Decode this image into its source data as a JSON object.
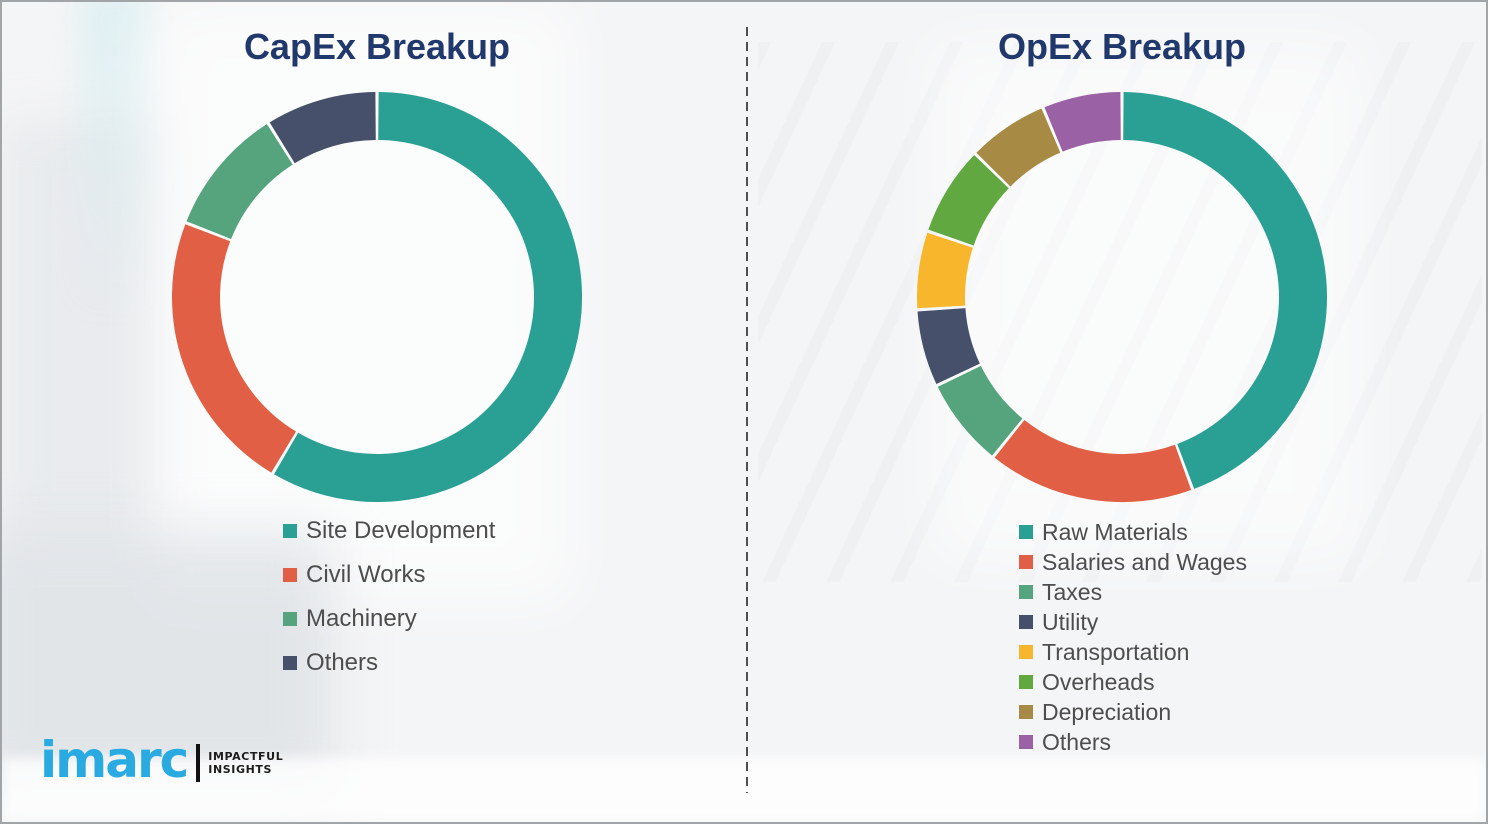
{
  "chart_data": [
    {
      "type": "pie",
      "subtype": "donut",
      "title": "CapEx Breakup",
      "legend_position": "below-left",
      "data_labels_shown": false,
      "segments": [
        {
          "label": "Site Development",
          "value_pct": 58.5,
          "color": "#2AA095"
        },
        {
          "label": "Civil Works",
          "value_pct": 22.4,
          "color": "#E15F44"
        },
        {
          "label": "Machinery",
          "value_pct": 10.2,
          "color": "#55A47D"
        },
        {
          "label": "Others",
          "value_pct": 8.9,
          "color": "#47506A"
        }
      ]
    },
    {
      "type": "pie",
      "subtype": "donut",
      "title": "OpEx Breakup",
      "legend_position": "below-left",
      "data_labels_shown": false,
      "segments": [
        {
          "label": "Raw Materials",
          "value_pct": 44.4,
          "color": "#2AA095"
        },
        {
          "label": "Salaries and Wages",
          "value_pct": 16.4,
          "color": "#E15F44"
        },
        {
          "label": "Taxes",
          "value_pct": 7.1,
          "color": "#55A47D"
        },
        {
          "label": "Utility",
          "value_pct": 6.1,
          "color": "#47506A"
        },
        {
          "label": "Transportation",
          "value_pct": 6.2,
          "color": "#F8B62C"
        },
        {
          "label": "Overheads",
          "value_pct": 7.1,
          "color": "#60A83F"
        },
        {
          "label": "Depreciation",
          "value_pct": 6.4,
          "color": "#A78A44"
        },
        {
          "label": "Others",
          "value_pct": 6.3,
          "color": "#9B61A5"
        }
      ]
    }
  ],
  "styles": {
    "title_color": "#20386B",
    "legend_text_color": "#4D4D4D",
    "divider_color": "#4F4F4F"
  },
  "logo": {
    "wordmark": "imarc",
    "wordmark_color": "#29ABE2",
    "bar_color": "#111111",
    "tagline_line1": "IMPACTFUL",
    "tagline_line2": "INSIGHTS",
    "tagline_color": "#1C1C1C"
  }
}
